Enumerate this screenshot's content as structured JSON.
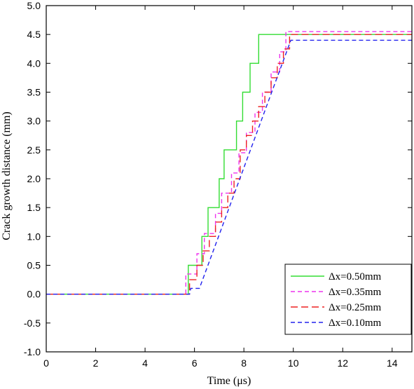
{
  "chart_data": {
    "type": "line",
    "xlabel": "Time (μs)",
    "ylabel": "Crack growth distance (mm)",
    "xlim": [
      0,
      14.8
    ],
    "ylim": [
      -1.0,
      5.0
    ],
    "x_ticks": [
      "0",
      "2",
      "4",
      "6",
      "8",
      "10",
      "12",
      "14"
    ],
    "x_tick_values": [
      0,
      2,
      4,
      6,
      8,
      10,
      12,
      14
    ],
    "y_ticks": [
      "-1.0",
      "-0.5",
      "0.0",
      "0.5",
      "1.0",
      "1.5",
      "2.0",
      "2.5",
      "3.0",
      "3.5",
      "4.0",
      "4.5",
      "5.0"
    ],
    "y_tick_values": [
      -1.0,
      -0.5,
      0.0,
      0.5,
      1.0,
      1.5,
      2.0,
      2.5,
      3.0,
      3.5,
      4.0,
      4.5,
      5.0
    ],
    "grid": false,
    "legend_position": "bottom-right",
    "series": [
      {
        "name": "Δx=0.50mm",
        "color": "#33dd33",
        "dash": "solid",
        "x": [
          0,
          5.7,
          5.75,
          5.75,
          6.3,
          6.3,
          6.55,
          6.55,
          7.0,
          7.0,
          7.2,
          7.2,
          7.7,
          7.7,
          7.95,
          7.95,
          8.25,
          8.25,
          8.6,
          8.6,
          8.9,
          8.9,
          9.2,
          9.2,
          14.8
        ],
        "y": [
          0,
          0,
          0,
          0.5,
          0.5,
          1.0,
          1.0,
          1.5,
          1.5,
          2.0,
          2.0,
          2.5,
          2.5,
          3.0,
          3.0,
          3.5,
          3.5,
          4.0,
          4.0,
          4.5,
          4.5,
          4.5,
          4.5,
          4.5,
          4.5
        ]
      },
      {
        "name": "Δx=0.35mm",
        "color": "#ee33ee",
        "dash": "dashed",
        "x": [
          0,
          5.6,
          5.65,
          5.65,
          6.1,
          6.1,
          6.4,
          6.4,
          6.85,
          6.85,
          7.1,
          7.1,
          7.5,
          7.5,
          7.8,
          7.8,
          8.1,
          8.1,
          8.45,
          8.45,
          8.75,
          8.75,
          9.1,
          9.1,
          9.45,
          9.45,
          9.7,
          9.7,
          14.8
        ],
        "y": [
          0,
          0,
          0,
          0.35,
          0.35,
          0.7,
          0.7,
          1.05,
          1.05,
          1.4,
          1.4,
          1.75,
          1.75,
          2.1,
          2.1,
          2.45,
          2.45,
          2.8,
          2.8,
          3.15,
          3.15,
          3.5,
          3.5,
          3.85,
          3.85,
          4.2,
          4.2,
          4.55,
          4.55
        ]
      },
      {
        "name": "Δx=0.25mm",
        "color": "#ee2222",
        "dash": "longdash",
        "x": [
          0,
          5.75,
          5.8,
          5.8,
          6.1,
          6.1,
          6.35,
          6.35,
          6.6,
          6.6,
          6.85,
          6.85,
          7.1,
          7.1,
          7.35,
          7.35,
          7.6,
          7.6,
          7.85,
          7.85,
          8.1,
          8.1,
          8.35,
          8.35,
          8.6,
          8.6,
          8.85,
          8.85,
          9.1,
          9.1,
          9.35,
          9.35,
          9.6,
          9.6,
          9.85,
          9.85,
          14.8
        ],
        "y": [
          0,
          0,
          0,
          0.25,
          0.25,
          0.5,
          0.5,
          0.75,
          0.75,
          1.0,
          1.0,
          1.25,
          1.25,
          1.5,
          1.5,
          1.75,
          1.75,
          2.0,
          2.0,
          2.5,
          2.5,
          2.75,
          2.75,
          3.0,
          3.0,
          3.25,
          3.25,
          3.5,
          3.5,
          3.75,
          3.75,
          4.0,
          4.0,
          4.25,
          4.25,
          4.5,
          4.5
        ]
      },
      {
        "name": "Δx=0.10mm",
        "color": "#2222ee",
        "dash": "dashed",
        "x": [
          0,
          5.8,
          5.85,
          6.2,
          9.9,
          9.9,
          14.8
        ],
        "y": [
          0,
          0,
          0.1,
          0.1,
          4.4,
          4.4,
          4.4
        ]
      }
    ]
  }
}
